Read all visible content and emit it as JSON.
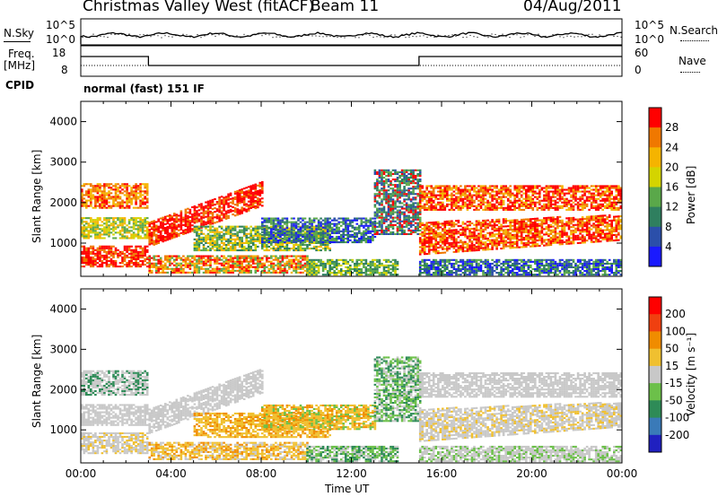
{
  "header": {
    "station": "Christmas Valley West (fitACF)",
    "beam": "Beam 11",
    "date": "04/Aug/2011"
  },
  "strip": {
    "nsky_label": "N.Sky",
    "nsearch_label": "N.Search",
    "freq_label_1": "Freq.",
    "freq_label_2": "[MHz]",
    "nave_label": "Nave",
    "cpid_label": "CPID",
    "cpid_value": "normal (fast) 151 IF",
    "noise_ticks_left": [
      "10^5",
      "10^0"
    ],
    "noise_ticks_right": [
      "10^5",
      "10^0"
    ],
    "freq_ticks": [
      "18",
      "8"
    ],
    "nave_ticks": [
      "60",
      "0"
    ]
  },
  "chart_data": [
    {
      "type": "heatmap",
      "quantity": "Power",
      "ylabel": "Slant Range [km]",
      "xlabel": "Time UT",
      "x_ticks": [
        "00:00",
        "04:00",
        "08:00",
        "12:00",
        "16:00",
        "20:00",
        "00:00"
      ],
      "y_ticks": [
        1000,
        2000,
        3000,
        4000
      ],
      "xlim_hours": [
        0,
        24
      ],
      "ylim_km": [
        180,
        4500
      ],
      "colorbar_label": "Power [dB]",
      "colorbar_ticks": [
        4,
        8,
        12,
        16,
        20,
        24,
        28
      ],
      "colorbar_colors": [
        "#1a1aff",
        "#2b4faa",
        "#2f7f5f",
        "#5aa84a",
        "#d4d400",
        "#f5b400",
        "#f07800",
        "#ff0000"
      ]
    },
    {
      "type": "heatmap",
      "quantity": "Velocity",
      "ylabel": "Slant Range [km]",
      "xlabel": "Time UT",
      "x_ticks": [
        "00:00",
        "04:00",
        "08:00",
        "12:00",
        "16:00",
        "20:00",
        "00:00"
      ],
      "y_ticks": [
        1000,
        2000,
        3000,
        4000
      ],
      "xlim_hours": [
        0,
        24
      ],
      "ylim_km": [
        180,
        4500
      ],
      "colorbar_label": "Velocity [m s⁻¹]",
      "colorbar_ticks": [
        200,
        100,
        50,
        15,
        -15,
        -50,
        -100,
        -200
      ],
      "colorbar_colors": [
        "#2020c0",
        "#3a7ab8",
        "#2e8b57",
        "#6cc04a",
        "#c8c8c8",
        "#f0c030",
        "#f08c00",
        "#f04010",
        "#ff0000"
      ]
    }
  ]
}
